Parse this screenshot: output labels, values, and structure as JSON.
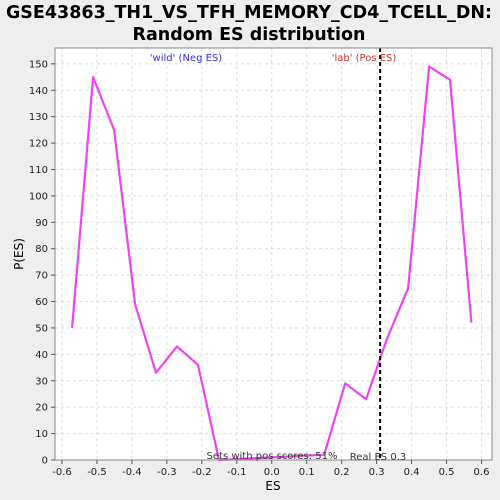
{
  "chart_data": {
    "type": "line",
    "title_line1": "GSE43863_TH1_VS_TFH_MEMORY_CD4_TCELL_DN:",
    "title_line2": "Random ES distribution",
    "xlabel": "ES",
    "ylabel": "P(ES)",
    "xlim": [
      -0.62,
      0.63
    ],
    "ylim": [
      0,
      156
    ],
    "x_ticks": [
      -0.6,
      -0.5,
      -0.4,
      -0.3,
      -0.2,
      -0.1,
      0.0,
      0.1,
      0.2,
      0.3,
      0.4,
      0.5,
      0.6
    ],
    "x_tick_labels": [
      "-0.6",
      "-0.5",
      "-0.4",
      "-0.3",
      "-0.2",
      "-0.1",
      "0.0",
      "0.1",
      "0.2",
      "0.3",
      "0.4",
      "0.5",
      "0.6"
    ],
    "y_ticks": [
      0,
      10,
      20,
      30,
      40,
      50,
      60,
      70,
      80,
      90,
      100,
      110,
      120,
      130,
      140,
      150
    ],
    "y_tick_labels": [
      "0",
      "10",
      "20",
      "30",
      "40",
      "50",
      "60",
      "70",
      "80",
      "90",
      "100",
      "110",
      "120",
      "130",
      "140",
      "150"
    ],
    "grid": true,
    "series": [
      {
        "color": "#ee44ee",
        "x": [
          -0.571,
          -0.511,
          -0.451,
          -0.391,
          -0.331,
          -0.271,
          -0.211,
          -0.151,
          0.15,
          0.21,
          0.27,
          0.33,
          0.39,
          0.45,
          0.51,
          0.571
        ],
        "y": [
          50,
          145,
          125,
          59,
          33,
          43,
          36,
          0,
          2,
          29,
          23,
          46,
          65,
          149,
          144,
          52
        ]
      }
    ],
    "real_es": 0.31,
    "annotations": {
      "neg_label": "'wild' (Neg ES)",
      "pos_label": "'lab' (Pos ES)",
      "pos_scores": "Sets with pos scores: 51%",
      "real_es_label": "Real ES 0.3"
    },
    "colors": {
      "neg": "#3333cc",
      "pos": "#cc3333",
      "line": "#ee44ee",
      "grid": "#dddddd"
    }
  }
}
